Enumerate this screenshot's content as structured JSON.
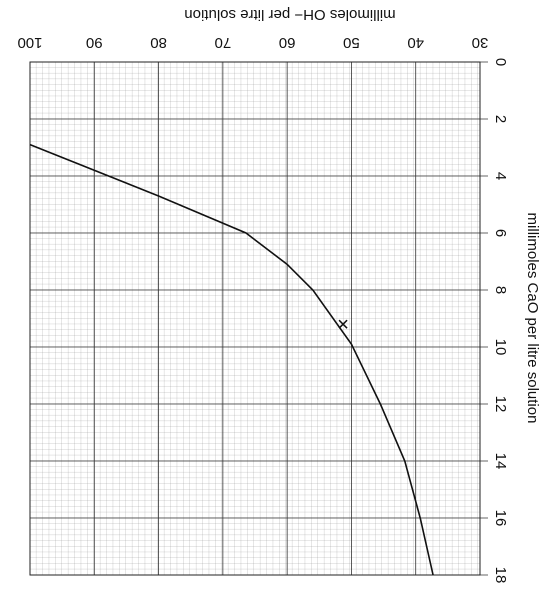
{
  "chart_data": {
    "type": "line",
    "x_label": "millimoles OH− per litre solution",
    "y_label": "millimoles CaO per litre solution",
    "x": [
      100,
      80,
      66.4,
      60,
      56,
      50,
      45.5,
      41.7,
      39.3,
      37.3
    ],
    "values": [
      2.9,
      4.7,
      6,
      7.1,
      8,
      9.9,
      12,
      14,
      16,
      18
    ],
    "color": "#111111",
    "marker": {
      "x": 51.3,
      "y": 9.2
    },
    "xlim": [
      100,
      30
    ],
    "xticks": [
      100,
      90,
      80,
      70,
      60,
      50,
      40,
      30
    ],
    "ylim": [
      0,
      18
    ],
    "yticks": [
      0,
      2,
      4,
      6,
      8,
      10,
      12,
      14,
      16,
      18
    ],
    "y_inverted": true,
    "grid": true
  }
}
